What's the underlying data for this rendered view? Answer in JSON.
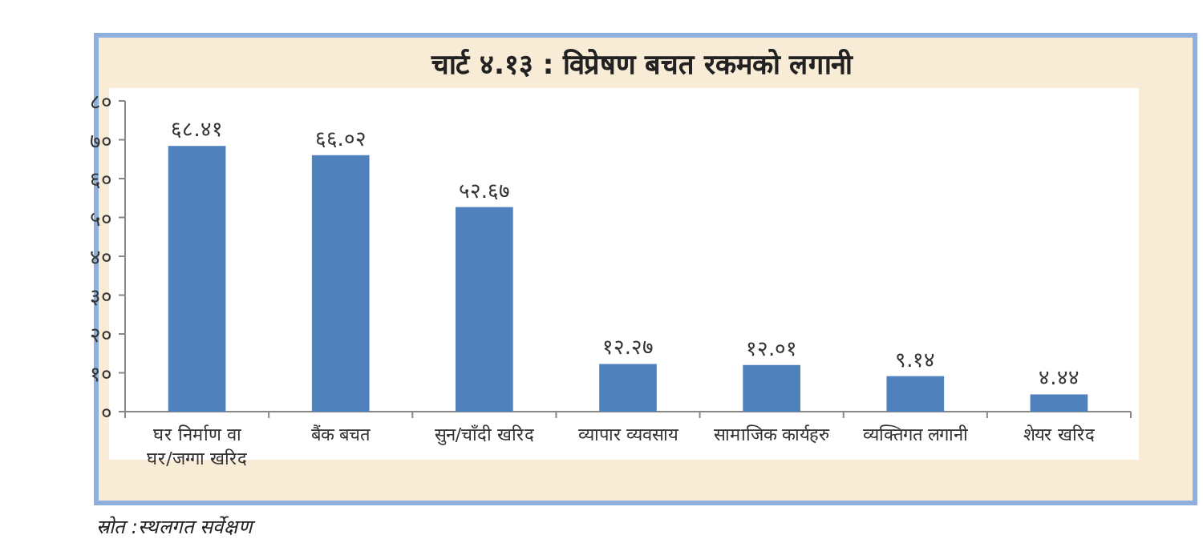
{
  "chart_data": {
    "type": "bar",
    "title": "चार्ट ४.१३ : विप्रेषण बचत रकमको लगानी",
    "categories": [
      "घर निर्माण वा\nघर/जग्गा खरिद",
      "बैंक बचत",
      "सुन/चाँदी खरिद",
      "व्यापार व्यवसाय",
      "सामाजिक कार्यहरु",
      "व्यक्तिगत लगानी",
      "शेयर खरिद"
    ],
    "values": [
      68.41,
      66.02,
      52.67,
      12.27,
      12.01,
      9.14,
      4.44
    ],
    "value_labels": [
      "६८.४१",
      "६६.०२",
      "५२.६७",
      "१२.२७",
      "१२.०१",
      "९.१४",
      "४.४४"
    ],
    "color": "#4f81bd",
    "ylim": [
      0,
      80
    ],
    "yticks": [
      {
        "value": 0,
        "label": "०"
      },
      {
        "value": 10,
        "label": "१०"
      },
      {
        "value": 20,
        "label": "२०"
      },
      {
        "value": 30,
        "label": "३०"
      },
      {
        "value": 40,
        "label": "४०"
      },
      {
        "value": 50,
        "label": "५०"
      },
      {
        "value": 60,
        "label": "६०"
      },
      {
        "value": 70,
        "label": "७०"
      },
      {
        "value": 80,
        "label": "८०"
      }
    ],
    "grid": false,
    "annotations": [
      "स्रोत :स्थलगत सर्वेक्षण"
    ]
  }
}
